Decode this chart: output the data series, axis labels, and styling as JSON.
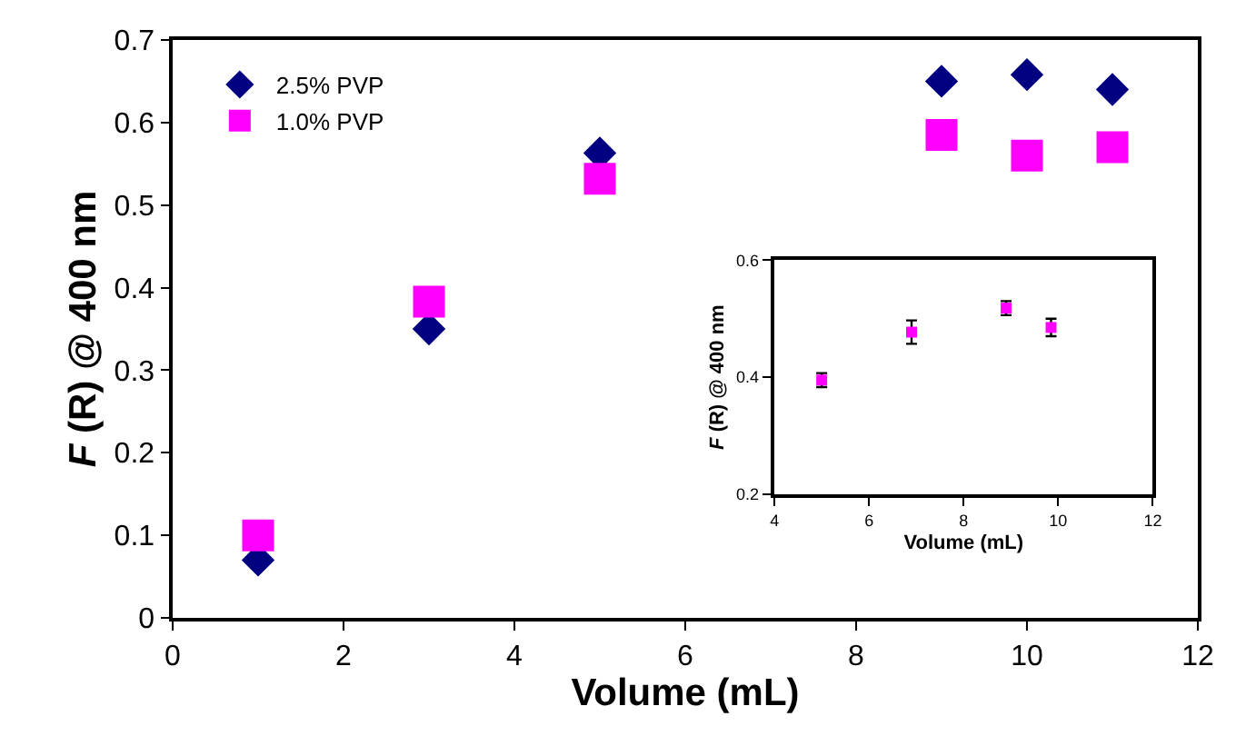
{
  "chart_data": [
    {
      "type": "scatter",
      "xlabel": "Volume (mL)",
      "ylabel": "F (R) @ 400 nm",
      "xlim": [
        0,
        12
      ],
      "xticks": [
        0,
        2,
        4,
        6,
        8,
        10,
        12
      ],
      "ylim": [
        0,
        0.7
      ],
      "yticks": [
        0,
        0.1,
        0.2,
        0.3,
        0.4,
        0.5,
        0.6,
        0.7
      ],
      "legend": "top left",
      "series": [
        {
          "name": "2.5% PVP",
          "color": "#000080",
          "marker": "diamond",
          "x": [
            1,
            3,
            5,
            9,
            10,
            11
          ],
          "values": [
            0.07,
            0.35,
            0.563,
            0.65,
            0.658,
            0.64
          ]
        },
        {
          "name": "1.0% PVP",
          "color": "#ff00ff",
          "marker": "square",
          "x": [
            1,
            3,
            5,
            9,
            10,
            11
          ],
          "values": [
            0.1,
            0.383,
            0.532,
            0.585,
            0.56,
            0.57
          ]
        }
      ]
    },
    {
      "type": "scatter",
      "xlabel": "Volume (mL)",
      "ylabel": "F (R) @ 400 nm",
      "xlim": [
        4,
        12
      ],
      "xticks": [
        4,
        6,
        8,
        10,
        12
      ],
      "ylim": [
        0.2,
        0.6
      ],
      "yticks": [
        0.2,
        0.4,
        0.6
      ],
      "legend": false,
      "series": [
        {
          "color": "#ff00ff",
          "marker": "square",
          "x": [
            5,
            6.9,
            8.9,
            9.85
          ],
          "values": [
            0.395,
            0.477,
            0.518,
            0.485
          ],
          "errors": [
            0.012,
            0.02,
            0.012,
            0.015
          ]
        }
      ]
    }
  ]
}
